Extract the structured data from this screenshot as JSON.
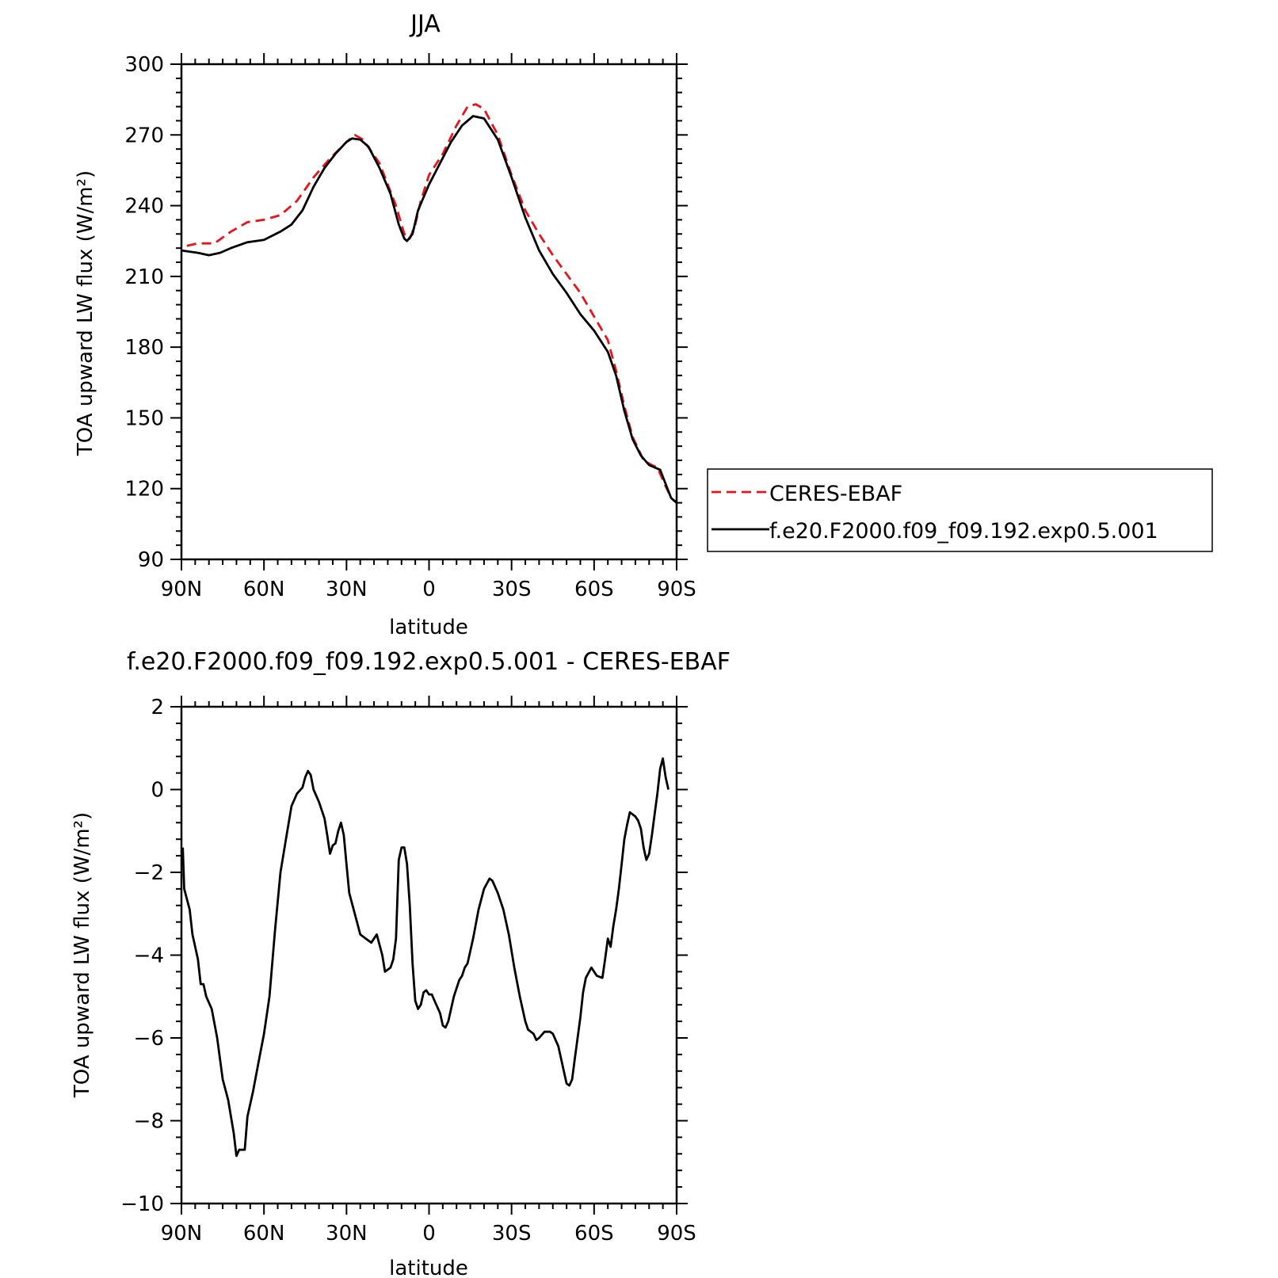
{
  "chart_data": [
    {
      "type": "line",
      "title": "JJA",
      "xlabel": "latitude",
      "ylabel": "TOA upward LW flux (W/m²)",
      "xlim": [
        90,
        -90
      ],
      "ylim": [
        90,
        300
      ],
      "xticks": [
        {
          "value": 90,
          "label": "90N"
        },
        {
          "value": 60,
          "label": "60N"
        },
        {
          "value": 30,
          "label": "30N"
        },
        {
          "value": 0,
          "label": "0"
        },
        {
          "value": -30,
          "label": "30S"
        },
        {
          "value": -60,
          "label": "60S"
        },
        {
          "value": -90,
          "label": "90S"
        }
      ],
      "yticks": [
        90,
        120,
        150,
        180,
        210,
        240,
        270,
        300
      ],
      "legend_position": "right",
      "series": [
        {
          "name": "CERES-EBAF",
          "color": "#e8141a",
          "style": "dashed",
          "points": [
            [
              88,
              223
            ],
            [
              84,
              224
            ],
            [
              78,
              224
            ],
            [
              72,
              229
            ],
            [
              66,
              233
            ],
            [
              60,
              234
            ],
            [
              54,
              236
            ],
            [
              48,
              242
            ],
            [
              42,
              252
            ],
            [
              36,
              260
            ],
            [
              30,
              267
            ],
            [
              27,
              270
            ],
            [
              24,
              268
            ],
            [
              18,
              258
            ],
            [
              12,
              240
            ],
            [
              9,
              228
            ],
            [
              7,
              226
            ],
            [
              5,
              232
            ],
            [
              3,
              242
            ],
            [
              0,
              253
            ],
            [
              -5,
              262
            ],
            [
              -10,
              274
            ],
            [
              -14,
              282
            ],
            [
              -17,
              283
            ],
            [
              -20,
              281
            ],
            [
              -25,
              270
            ],
            [
              -30,
              253
            ],
            [
              -35,
              238
            ],
            [
              -40,
              228
            ],
            [
              -45,
              219
            ],
            [
              -50,
              211
            ],
            [
              -55,
              203
            ],
            [
              -60,
              193
            ],
            [
              -65,
              183
            ],
            [
              -68,
              170
            ],
            [
              -71,
              155
            ],
            [
              -74,
              142
            ],
            [
              -78,
              132
            ],
            [
              -81,
              130
            ],
            [
              -83,
              129
            ],
            [
              -86,
              121
            ],
            [
              -88,
              116
            ],
            [
              -90,
              114
            ]
          ]
        },
        {
          "name": "f.e20.F2000.f09_f09.192.exp0.5.001",
          "color": "#000000",
          "style": "solid",
          "points": [
            [
              90,
              221
            ],
            [
              84,
              220
            ],
            [
              80,
              219
            ],
            [
              76,
              220
            ],
            [
              72,
              222
            ],
            [
              66,
              224.5
            ],
            [
              60,
              225.5
            ],
            [
              54,
              229
            ],
            [
              50,
              232
            ],
            [
              46,
              238
            ],
            [
              42,
              248
            ],
            [
              38,
              256
            ],
            [
              34,
              262
            ],
            [
              30,
              267
            ],
            [
              28,
              268.5
            ],
            [
              25,
              268
            ],
            [
              22,
              265
            ],
            [
              18,
              256
            ],
            [
              14,
              245
            ],
            [
              11,
              232
            ],
            [
              9,
              226
            ],
            [
              8,
              225
            ],
            [
              6,
              228
            ],
            [
              4,
              238
            ],
            [
              0,
              249
            ],
            [
              -4,
              258
            ],
            [
              -8,
              267
            ],
            [
              -12,
              274
            ],
            [
              -16,
              278
            ],
            [
              -20,
              277
            ],
            [
              -25,
              268
            ],
            [
              -30,
              252
            ],
            [
              -35,
              235
            ],
            [
              -40,
              221
            ],
            [
              -45,
              211
            ],
            [
              -50,
              203
            ],
            [
              -55,
              194
            ],
            [
              -60,
              187
            ],
            [
              -65,
              178
            ],
            [
              -68,
              168
            ],
            [
              -71,
              153
            ],
            [
              -74,
              141
            ],
            [
              -77,
              134
            ],
            [
              -80,
              130
            ],
            [
              -84,
              128
            ],
            [
              -86,
              122
            ],
            [
              -88,
              116
            ],
            [
              -90,
              114
            ]
          ]
        }
      ]
    },
    {
      "type": "line",
      "title": "f.e20.F2000.f09_f09.192.exp0.5.001 - CERES-EBAF",
      "xlabel": "latitude",
      "ylabel": "TOA upward LW flux (W/m²)",
      "xlim": [
        90,
        -90
      ],
      "ylim": [
        -10,
        2
      ],
      "xticks": [
        {
          "value": 90,
          "label": "90N"
        },
        {
          "value": 60,
          "label": "60N"
        },
        {
          "value": 30,
          "label": "30N"
        },
        {
          "value": 0,
          "label": "0"
        },
        {
          "value": -30,
          "label": "30S"
        },
        {
          "value": -60,
          "label": "60S"
        },
        {
          "value": -90,
          "label": "90S"
        }
      ],
      "yticks": [
        2,
        0,
        -2,
        -4,
        -6,
        -8,
        -10
      ],
      "series": [
        {
          "color": "#000000",
          "style": "solid",
          "points": [
            [
              89.5,
              -1.4
            ],
            [
              89,
              -2.4
            ],
            [
              87,
              -2.9
            ],
            [
              86,
              -3.5
            ],
            [
              84,
              -4.1
            ],
            [
              83,
              -4.7
            ],
            [
              82,
              -4.7
            ],
            [
              81,
              -5.0
            ],
            [
              79,
              -5.3
            ],
            [
              77,
              -6.0
            ],
            [
              75,
              -7.0
            ],
            [
              73,
              -7.5
            ],
            [
              71,
              -8.3
            ],
            [
              70,
              -8.85
            ],
            [
              69,
              -8.7
            ],
            [
              67,
              -8.7
            ],
            [
              66,
              -7.9
            ],
            [
              64,
              -7.3
            ],
            [
              62,
              -6.6
            ],
            [
              60,
              -5.9
            ],
            [
              58,
              -5.0
            ],
            [
              56,
              -3.4
            ],
            [
              54,
              -2.0
            ],
            [
              52,
              -1.2
            ],
            [
              50,
              -0.4
            ],
            [
              48,
              -0.1
            ],
            [
              46,
              0.05
            ],
            [
              45,
              0.3
            ],
            [
              44,
              0.45
            ],
            [
              43,
              0.35
            ],
            [
              42,
              0.0
            ],
            [
              40,
              -0.3
            ],
            [
              38,
              -0.7
            ],
            [
              37,
              -1.1
            ],
            [
              36,
              -1.55
            ],
            [
              35,
              -1.35
            ],
            [
              34,
              -1.3
            ],
            [
              33,
              -1.0
            ],
            [
              32,
              -0.8
            ],
            [
              31,
              -1.1
            ],
            [
              30,
              -1.8
            ],
            [
              29,
              -2.5
            ],
            [
              27,
              -3.0
            ],
            [
              25,
              -3.5
            ],
            [
              23,
              -3.6
            ],
            [
              21,
              -3.7
            ],
            [
              19,
              -3.5
            ],
            [
              17,
              -4.0
            ],
            [
              16,
              -4.4
            ],
            [
              14,
              -4.3
            ],
            [
              13,
              -4.1
            ],
            [
              12,
              -3.6
            ],
            [
              11,
              -1.7
            ],
            [
              10,
              -1.4
            ],
            [
              9,
              -1.4
            ],
            [
              8,
              -1.8
            ],
            [
              7,
              -2.8
            ],
            [
              6,
              -4.2
            ],
            [
              5,
              -5.1
            ],
            [
              4,
              -5.3
            ],
            [
              3,
              -5.2
            ],
            [
              2,
              -4.9
            ],
            [
              1,
              -4.85
            ],
            [
              0,
              -4.95
            ],
            [
              -1,
              -4.95
            ],
            [
              -2,
              -5.1
            ],
            [
              -4,
              -5.4
            ],
            [
              -5,
              -5.7
            ],
            [
              -6,
              -5.75
            ],
            [
              -7,
              -5.6
            ],
            [
              -9,
              -5.0
            ],
            [
              -11,
              -4.6
            ],
            [
              -12,
              -4.5
            ],
            [
              -13,
              -4.3
            ],
            [
              -14,
              -4.2
            ],
            [
              -16,
              -3.6
            ],
            [
              -18,
              -2.9
            ],
            [
              -20,
              -2.4
            ],
            [
              -22,
              -2.15
            ],
            [
              -23,
              -2.2
            ],
            [
              -25,
              -2.5
            ],
            [
              -27,
              -2.9
            ],
            [
              -29,
              -3.5
            ],
            [
              -31,
              -4.3
            ],
            [
              -33,
              -5.0
            ],
            [
              -35,
              -5.6
            ],
            [
              -36,
              -5.8
            ],
            [
              -38,
              -5.9
            ],
            [
              -39,
              -6.05
            ],
            [
              -40,
              -6.0
            ],
            [
              -42,
              -5.85
            ],
            [
              -44,
              -5.85
            ],
            [
              -45,
              -5.9
            ],
            [
              -47,
              -6.2
            ],
            [
              -49,
              -6.8
            ],
            [
              -50,
              -7.1
            ],
            [
              -51,
              -7.15
            ],
            [
              -52,
              -7.0
            ],
            [
              -53,
              -6.5
            ],
            [
              -55,
              -5.5
            ],
            [
              -56,
              -4.9
            ],
            [
              -57,
              -4.55
            ],
            [
              -59,
              -4.3
            ],
            [
              -61,
              -4.5
            ],
            [
              -63,
              -4.55
            ],
            [
              -64,
              -4.1
            ],
            [
              -65,
              -3.6
            ],
            [
              -66,
              -3.8
            ],
            [
              -67,
              -3.3
            ],
            [
              -68,
              -2.9
            ],
            [
              -69,
              -2.4
            ],
            [
              -70,
              -1.8
            ],
            [
              -71,
              -1.2
            ],
            [
              -72,
              -0.85
            ],
            [
              -73,
              -0.55
            ],
            [
              -75,
              -0.65
            ],
            [
              -76,
              -0.75
            ],
            [
              -77,
              -0.95
            ],
            [
              -78,
              -1.4
            ],
            [
              -79,
              -1.7
            ],
            [
              -80,
              -1.55
            ],
            [
              -81,
              -1.1
            ],
            [
              -82,
              -0.6
            ],
            [
              -83,
              -0.1
            ],
            [
              -84,
              0.5
            ],
            [
              -85,
              0.75
            ],
            [
              -86,
              0.3
            ],
            [
              -87,
              0.0
            ]
          ]
        }
      ]
    }
  ]
}
